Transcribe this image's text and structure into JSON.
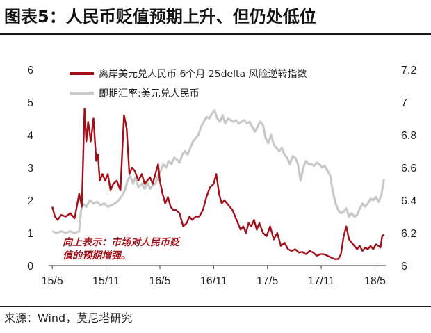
{
  "header": {
    "title": "图表5：人民币贬值预期上升、但仍处低位"
  },
  "footer": {
    "source": "来源：Wind，莫尼塔研究"
  },
  "chart_data": {
    "type": "line",
    "title": "图表5：人民币贬值预期上升、但仍处低位",
    "x_ticks": [
      "15/5",
      "15/11",
      "16/5",
      "16/11",
      "17/5",
      "17/11",
      "18/5"
    ],
    "x_tick_t": [
      0,
      6,
      12,
      18,
      24,
      30,
      36
    ],
    "x_range": [
      -0.4,
      37.2
    ],
    "y_left": {
      "ticks": [
        0,
        1,
        2,
        3,
        4,
        5,
        6
      ],
      "range": [
        0,
        6
      ]
    },
    "y_right": {
      "ticks": [
        6,
        6.2,
        6.4,
        6.6,
        6.8,
        7,
        7.2
      ],
      "tick_labels": [
        "6",
        "6.2",
        "6.4",
        "6.6",
        "6.8",
        "7",
        "7.2"
      ],
      "range": [
        6,
        7.2
      ]
    },
    "grid": false,
    "legend": "top",
    "annotation": [
      "向上表示：市场对人民币贬",
      "值的预期增强。"
    ],
    "series": [
      {
        "name": "离岸美元兑人民币 6个月 25delta 风险逆转指数",
        "axis": "left",
        "color": "#a3101a",
        "x": [
          0,
          0.3,
          0.6,
          1,
          1.5,
          2,
          2.5,
          3,
          3.3,
          3.6,
          3.8,
          4,
          4.3,
          4.6,
          4.9,
          5.1,
          5.3,
          5.6,
          5.9,
          6.2,
          6.5,
          6.8,
          7.2,
          7.6,
          8,
          8.3,
          8.6,
          8.9,
          9.2,
          9.6,
          10,
          10.3,
          10.6,
          10.9,
          11.2,
          11.5,
          11.8,
          12,
          12.3,
          12.6,
          12.9,
          13.2,
          13.5,
          13.8,
          14.2,
          14.6,
          15,
          15.3,
          15.6,
          16,
          16.4,
          16.8,
          17.2,
          17.6,
          18,
          18.3,
          18.6,
          18.9,
          19.2,
          19.5,
          19.8,
          20.1,
          20.4,
          20.7,
          21,
          21.3,
          21.6,
          21.9,
          22.2,
          22.5,
          22.8,
          23.1,
          23.5,
          23.9,
          24.3,
          24.7,
          25.1,
          25.5,
          25.9,
          26.3,
          26.7,
          27.1,
          27.5,
          27.9,
          28.3,
          28.7,
          29.1,
          29.5,
          29.9,
          30.3,
          30.7,
          31.1,
          31.5,
          31.9,
          32.2,
          32.5,
          32.8,
          33.1,
          33.4,
          33.7,
          34,
          34.3,
          34.6,
          34.9,
          35.2,
          35.5,
          35.8,
          36.1,
          36.4,
          36.6,
          36.8,
          37
        ],
        "y": [
          1.8,
          1.5,
          1.4,
          1.55,
          1.5,
          1.6,
          1.45,
          2.2,
          1.8,
          4.8,
          3.8,
          4.4,
          3.8,
          4.5,
          3.2,
          3.4,
          2.6,
          2.8,
          2.6,
          2.8,
          2.3,
          2.5,
          2.6,
          2.3,
          4.6,
          4.2,
          2.8,
          3.0,
          2.9,
          2.6,
          2.8,
          2.5,
          2.6,
          2.7,
          2.5,
          2.8,
          3.1,
          2.6,
          2.2,
          1.9,
          2.1,
          1.8,
          1.7,
          1.7,
          1.6,
          1.2,
          1.3,
          1.5,
          1.4,
          1.5,
          1.5,
          1.7,
          2.1,
          2.4,
          2.5,
          2.8,
          2.2,
          1.9,
          2.0,
          1.9,
          1.8,
          1.7,
          1.5,
          1.3,
          1.1,
          1.2,
          1.0,
          1.3,
          1.2,
          1.4,
          1.1,
          1.3,
          1.0,
          0.9,
          1.2,
          0.8,
          1.0,
          0.6,
          0.7,
          0.5,
          0.45,
          0.5,
          0.4,
          0.42,
          0.35,
          0.45,
          0.4,
          0.3,
          0.35,
          0.35,
          0.3,
          0.25,
          0.2,
          0.2,
          0.35,
          0.9,
          1.2,
          0.8,
          0.7,
          0.6,
          0.5,
          0.6,
          0.45,
          0.55,
          0.5,
          0.6,
          0.5,
          0.65,
          0.6,
          0.55,
          0.9,
          0.95
        ]
      },
      {
        "name": "即期汇率:美元兑人民币",
        "axis": "right",
        "color": "#c9c9c9",
        "x": [
          0,
          0.5,
          1,
          1.5,
          2,
          2.5,
          3,
          3.2,
          3.4,
          3.8,
          4.2,
          4.6,
          5,
          5.4,
          5.8,
          6.2,
          6.6,
          7,
          7.4,
          7.8,
          8.1,
          8.4,
          8.7,
          9,
          9.3,
          9.6,
          10,
          10.3,
          10.6,
          10.9,
          11.2,
          11.5,
          11.8,
          12.1,
          12.4,
          12.7,
          13,
          13.3,
          13.6,
          13.9,
          14.2,
          14.5,
          14.8,
          15.1,
          15.4,
          15.7,
          16,
          16.3,
          16.6,
          16.9,
          17.2,
          17.5,
          17.8,
          18.1,
          18.4,
          18.7,
          19,
          19.3,
          19.6,
          19.9,
          20.2,
          20.5,
          20.8,
          21.1,
          21.4,
          21.7,
          22,
          22.3,
          22.6,
          22.9,
          23.2,
          23.5,
          23.8,
          24.1,
          24.4,
          24.7,
          25,
          25.3,
          25.6,
          25.9,
          26.2,
          26.5,
          26.8,
          27.1,
          27.4,
          27.7,
          28,
          28.3,
          28.6,
          28.9,
          29.2,
          29.5,
          29.8,
          30.1,
          30.4,
          30.7,
          31,
          31.3,
          31.6,
          31.9,
          32.2,
          32.5,
          32.8,
          33.1,
          33.4,
          33.7,
          34,
          34.3,
          34.6,
          34.9,
          35.2,
          35.5,
          35.8,
          36.1,
          36.4,
          36.7,
          37
        ],
        "y": [
          6.21,
          6.2,
          6.21,
          6.2,
          6.21,
          6.2,
          6.21,
          6.33,
          6.38,
          6.36,
          6.4,
          6.38,
          6.39,
          6.37,
          6.38,
          6.36,
          6.37,
          6.38,
          6.4,
          6.43,
          6.46,
          6.52,
          6.55,
          6.5,
          6.54,
          6.48,
          6.5,
          6.47,
          6.51,
          6.47,
          6.49,
          6.5,
          6.55,
          6.58,
          6.62,
          6.6,
          6.64,
          6.62,
          6.66,
          6.65,
          6.63,
          6.68,
          6.7,
          6.68,
          6.72,
          6.76,
          6.78,
          6.8,
          6.85,
          6.88,
          6.91,
          6.9,
          6.93,
          6.95,
          6.9,
          6.88,
          6.92,
          6.87,
          6.9,
          6.89,
          6.88,
          6.89,
          6.87,
          6.88,
          6.89,
          6.87,
          6.88,
          6.85,
          6.82,
          6.85,
          6.88,
          6.86,
          6.78,
          6.75,
          6.8,
          6.74,
          6.72,
          6.7,
          6.72,
          6.68,
          6.66,
          6.62,
          6.67,
          6.66,
          6.62,
          6.52,
          6.6,
          6.64,
          6.62,
          6.62,
          6.61,
          6.63,
          6.62,
          6.6,
          6.61,
          6.58,
          6.55,
          6.45,
          6.38,
          6.34,
          6.32,
          6.33,
          6.35,
          6.3,
          6.32,
          6.3,
          6.31,
          6.35,
          6.38,
          6.36,
          6.38,
          6.41,
          6.4,
          6.42,
          6.39,
          6.43,
          6.53
        ]
      }
    ]
  }
}
